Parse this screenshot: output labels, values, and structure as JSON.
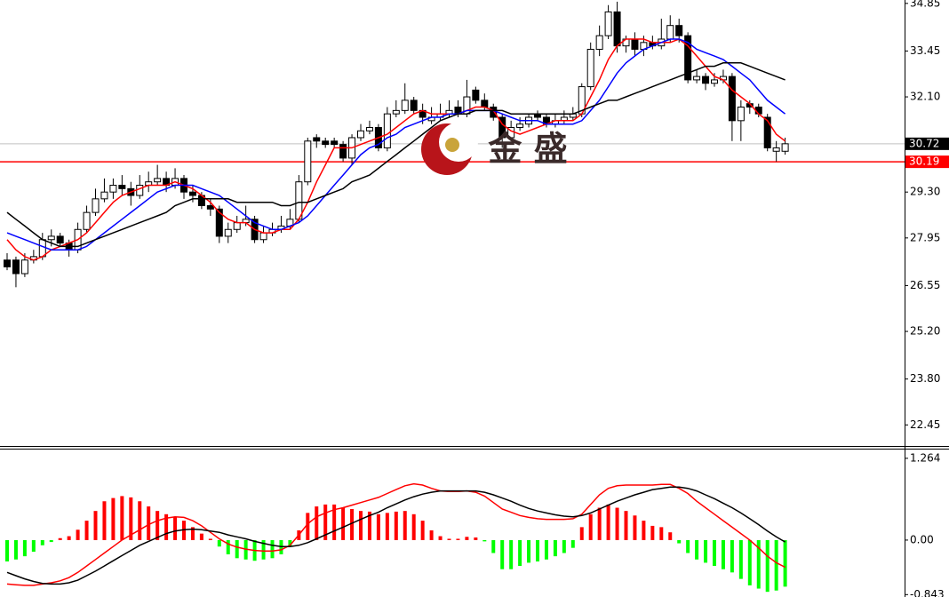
{
  "chart_data": [
    {
      "type": "candlestick",
      "open": [
        27.3,
        27.3,
        26.9,
        27.3,
        27.4,
        27.9,
        28.0,
        27.8,
        27.6,
        28.2,
        28.7,
        29.1,
        29.3,
        29.5,
        29.4,
        29.2,
        29.5,
        29.6,
        29.7,
        29.5,
        29.7,
        29.3,
        29.2,
        28.9,
        28.8,
        28.0,
        28.2,
        28.4,
        28.5,
        27.9,
        28.1,
        28.2,
        28.3,
        28.5,
        29.6,
        30.9,
        30.8,
        30.8,
        30.7,
        30.3,
        30.9,
        31.1,
        31.2,
        30.6,
        31.6,
        31.7,
        32.0,
        31.7,
        31.4,
        31.5,
        31.6,
        31.8,
        31.6,
        32.3,
        32.0,
        31.8,
        31.5,
        30.9,
        31.2,
        31.3,
        31.6,
        31.5,
        31.3,
        31.4,
        31.5,
        31.6,
        32.4,
        33.5,
        33.9,
        34.6,
        33.6,
        33.8,
        33.5,
        33.7,
        33.6,
        33.8,
        34.2,
        33.9,
        32.6,
        32.7,
        32.5,
        32.6,
        32.7,
        31.4,
        31.9,
        31.8,
        31.5,
        30.5,
        30.5
      ],
      "high": [
        27.5,
        27.4,
        27.5,
        27.6,
        28.1,
        28.2,
        28.1,
        27.9,
        28.4,
        28.9,
        29.4,
        29.7,
        29.7,
        29.8,
        29.6,
        29.8,
        29.9,
        30.1,
        29.9,
        30.0,
        29.8,
        29.5,
        29.3,
        29.1,
        28.9,
        28.4,
        28.6,
        28.9,
        28.6,
        28.3,
        28.4,
        28.6,
        28.8,
        29.8,
        30.9,
        31.0,
        30.9,
        30.9,
        30.8,
        31.0,
        31.3,
        31.4,
        31.3,
        31.8,
        32.0,
        32.5,
        32.1,
        31.9,
        31.8,
        31.9,
        32.0,
        32.0,
        32.6,
        32.4,
        32.2,
        31.9,
        31.6,
        31.4,
        31.5,
        31.6,
        31.7,
        31.6,
        31.6,
        31.7,
        31.8,
        32.5,
        33.7,
        34.2,
        34.8,
        34.9,
        33.9,
        34.0,
        33.9,
        33.9,
        34.4,
        34.5,
        34.4,
        34.0,
        32.9,
        32.8,
        32.8,
        32.9,
        32.8,
        32.0,
        32.0,
        31.9,
        31.6,
        30.8,
        30.9
      ],
      "low": [
        27.0,
        26.5,
        26.8,
        27.2,
        27.3,
        27.7,
        27.7,
        27.4,
        27.5,
        28.1,
        28.6,
        29.0,
        29.1,
        29.2,
        28.9,
        29.1,
        29.3,
        29.5,
        29.3,
        29.4,
        29.1,
        29.0,
        28.8,
        28.6,
        27.8,
        27.8,
        28.1,
        28.3,
        27.8,
        27.8,
        28.0,
        28.1,
        28.2,
        28.4,
        29.5,
        30.6,
        30.6,
        30.6,
        30.2,
        30.1,
        30.8,
        31.0,
        30.5,
        30.5,
        31.5,
        31.6,
        31.6,
        31.3,
        31.3,
        31.4,
        31.5,
        31.5,
        31.5,
        31.9,
        31.7,
        31.4,
        30.6,
        30.8,
        31.1,
        31.2,
        31.4,
        31.2,
        31.2,
        31.3,
        31.4,
        31.5,
        32.3,
        33.3,
        33.8,
        33.4,
        33.4,
        33.3,
        33.3,
        33.5,
        33.5,
        33.7,
        33.7,
        32.5,
        32.5,
        32.3,
        32.4,
        32.5,
        30.8,
        30.8,
        31.6,
        31.5,
        30.5,
        30.2,
        30.4
      ],
      "close": [
        27.1,
        26.9,
        27.3,
        27.4,
        27.9,
        28.0,
        27.8,
        27.6,
        28.2,
        28.7,
        29.1,
        29.3,
        29.5,
        29.4,
        29.2,
        29.5,
        29.6,
        29.7,
        29.5,
        29.7,
        29.3,
        29.2,
        28.9,
        28.8,
        28.0,
        28.2,
        28.4,
        28.5,
        27.9,
        28.1,
        28.2,
        28.3,
        28.5,
        29.6,
        30.8,
        30.8,
        30.7,
        30.7,
        30.3,
        30.9,
        31.1,
        31.2,
        30.6,
        31.6,
        31.7,
        32.0,
        31.7,
        31.5,
        31.5,
        31.6,
        31.7,
        31.6,
        32.1,
        32.0,
        31.8,
        31.5,
        30.9,
        31.2,
        31.3,
        31.5,
        31.5,
        31.3,
        31.4,
        31.5,
        31.6,
        32.4,
        33.5,
        33.9,
        34.6,
        33.6,
        33.8,
        33.5,
        33.7,
        33.6,
        33.8,
        34.2,
        33.9,
        32.6,
        32.7,
        32.5,
        32.6,
        32.7,
        31.4,
        31.8,
        31.8,
        31.6,
        30.6,
        30.6,
        30.72
      ],
      "up_color": "#ffffff",
      "down_color": "#000000",
      "edge_color": "#000000",
      "series": [
        {
          "color": "#ff0000",
          "values": [
            27.9,
            27.6,
            27.4,
            27.3,
            27.4,
            27.6,
            27.7,
            27.8,
            27.9,
            28.1,
            28.4,
            28.7,
            29.0,
            29.2,
            29.3,
            29.4,
            29.5,
            29.5,
            29.5,
            29.6,
            29.5,
            29.4,
            29.2,
            29.0,
            28.7,
            28.5,
            28.4,
            28.4,
            28.2,
            28.1,
            28.1,
            28.2,
            28.2,
            28.5,
            29.0,
            29.6,
            30.1,
            30.6,
            30.6,
            30.6,
            30.7,
            30.8,
            30.9,
            31.0,
            31.2,
            31.4,
            31.6,
            31.7,
            31.6,
            31.6,
            31.6,
            31.6,
            31.7,
            31.8,
            31.8,
            31.7,
            31.3,
            31.1,
            31.0,
            31.1,
            31.2,
            31.3,
            31.4,
            31.4,
            31.4,
            31.6,
            32.1,
            32.6,
            33.2,
            33.6,
            33.8,
            33.8,
            33.8,
            33.7,
            33.7,
            33.7,
            33.8,
            33.6,
            33.3,
            33.0,
            32.7,
            32.6,
            32.3,
            32.1,
            31.9,
            31.6,
            31.4,
            31.0,
            30.8
          ]
        },
        {
          "color": "#0000ff",
          "values": [
            28.1,
            28.0,
            27.9,
            27.8,
            27.7,
            27.6,
            27.6,
            27.6,
            27.6,
            27.7,
            27.9,
            28.1,
            28.3,
            28.5,
            28.7,
            28.9,
            29.1,
            29.3,
            29.4,
            29.5,
            29.5,
            29.5,
            29.4,
            29.3,
            29.2,
            29.0,
            28.8,
            28.6,
            28.4,
            28.3,
            28.2,
            28.2,
            28.3,
            28.4,
            28.6,
            28.9,
            29.2,
            29.5,
            29.8,
            30.1,
            30.4,
            30.6,
            30.7,
            30.9,
            31.0,
            31.2,
            31.3,
            31.4,
            31.5,
            31.5,
            31.6,
            31.6,
            31.7,
            31.7,
            31.7,
            31.7,
            31.6,
            31.5,
            31.4,
            31.4,
            31.4,
            31.3,
            31.3,
            31.3,
            31.3,
            31.4,
            31.7,
            32.0,
            32.4,
            32.8,
            33.1,
            33.3,
            33.5,
            33.6,
            33.7,
            33.8,
            33.8,
            33.7,
            33.5,
            33.4,
            33.3,
            33.2,
            33.0,
            32.8,
            32.6,
            32.3,
            32.0,
            31.8,
            31.6
          ]
        },
        {
          "color": "#000000",
          "values": [
            28.7,
            28.5,
            28.3,
            28.1,
            27.9,
            27.8,
            27.7,
            27.7,
            27.7,
            27.8,
            27.9,
            28.0,
            28.1,
            28.2,
            28.3,
            28.4,
            28.5,
            28.6,
            28.7,
            28.9,
            29.0,
            29.1,
            29.1,
            29.1,
            29.1,
            29.1,
            29.0,
            29.0,
            29.0,
            29.0,
            29.0,
            28.9,
            28.9,
            29.0,
            29.0,
            29.1,
            29.2,
            29.3,
            29.4,
            29.6,
            29.7,
            29.8,
            30.0,
            30.2,
            30.4,
            30.6,
            30.8,
            31.0,
            31.2,
            31.4,
            31.5,
            31.6,
            31.6,
            31.7,
            31.7,
            31.7,
            31.7,
            31.6,
            31.6,
            31.6,
            31.6,
            31.6,
            31.6,
            31.6,
            31.6,
            31.7,
            31.8,
            31.9,
            32.0,
            32.0,
            32.1,
            32.2,
            32.3,
            32.4,
            32.5,
            32.6,
            32.7,
            32.8,
            32.9,
            33.0,
            33.0,
            33.1,
            33.1,
            33.1,
            33.0,
            32.9,
            32.8,
            32.7,
            32.6
          ]
        }
      ],
      "ylim": [
        21.83,
        34.95
      ],
      "yticks": [
        22.45,
        {
          "value": 23.8,
          "label": "23.80"
        },
        {
          "value": 25.2,
          "label": "25.20"
        },
        26.55,
        27.95,
        {
          "value": 29.3,
          "label": "29.30"
        },
        {
          "value": 32.1,
          "label": "32.10"
        },
        33.45,
        34.85
      ],
      "price_lines": [
        {
          "value": 30.72,
          "color": "#c0c0c0",
          "label_color": "#000000"
        },
        {
          "value": 30.19,
          "color": "#ff0000",
          "label_color": "#ff0000"
        }
      ],
      "watermark": "金 盛"
    },
    {
      "type": "macd",
      "values": [
        -0.33,
        -0.3,
        -0.25,
        -0.18,
        -0.08,
        -0.03,
        0.03,
        0.06,
        0.16,
        0.3,
        0.45,
        0.6,
        0.65,
        0.68,
        0.66,
        0.6,
        0.52,
        0.45,
        0.4,
        0.35,
        0.3,
        0.2,
        0.1,
        0.02,
        -0.1,
        -0.22,
        -0.28,
        -0.3,
        -0.32,
        -0.3,
        -0.28,
        -0.22,
        -0.1,
        0.15,
        0.42,
        0.52,
        0.55,
        0.55,
        0.5,
        0.48,
        0.45,
        0.44,
        0.4,
        0.42,
        0.44,
        0.45,
        0.4,
        0.3,
        0.15,
        0.06,
        0.02,
        0.02,
        0.05,
        0.04,
        -0.02,
        -0.2,
        -0.45,
        -0.45,
        -0.4,
        -0.35,
        -0.33,
        -0.3,
        -0.25,
        -0.2,
        -0.12,
        0.2,
        0.4,
        0.5,
        0.55,
        0.5,
        0.45,
        0.38,
        0.3,
        0.22,
        0.2,
        0.12,
        -0.05,
        -0.2,
        -0.3,
        -0.35,
        -0.4,
        -0.45,
        -0.5,
        -0.6,
        -0.7,
        -0.75,
        -0.8,
        -0.78,
        -0.72
      ],
      "positive_color": "#ff0000",
      "negative_color": "#00ff00",
      "series": [
        {
          "color": "#ff0000",
          "values": [
            -0.68,
            -0.69,
            -0.7,
            -0.7,
            -0.68,
            -0.66,
            -0.63,
            -0.58,
            -0.5,
            -0.4,
            -0.3,
            -0.2,
            -0.1,
            0.0,
            0.08,
            0.16,
            0.24,
            0.3,
            0.34,
            0.36,
            0.35,
            0.3,
            0.22,
            0.12,
            0.02,
            -0.06,
            -0.11,
            -0.14,
            -0.16,
            -0.17,
            -0.17,
            -0.15,
            -0.08,
            0.08,
            0.25,
            0.36,
            0.42,
            0.47,
            0.5,
            0.54,
            0.58,
            0.62,
            0.66,
            0.72,
            0.78,
            0.84,
            0.87,
            0.85,
            0.8,
            0.76,
            0.75,
            0.75,
            0.76,
            0.74,
            0.68,
            0.58,
            0.48,
            0.43,
            0.38,
            0.35,
            0.33,
            0.32,
            0.32,
            0.32,
            0.33,
            0.4,
            0.55,
            0.7,
            0.8,
            0.84,
            0.85,
            0.85,
            0.85,
            0.85,
            0.86,
            0.86,
            0.8,
            0.72,
            0.6,
            0.5,
            0.4,
            0.3,
            0.2,
            0.1,
            0.0,
            -0.12,
            -0.25,
            -0.35,
            -0.42
          ]
        },
        {
          "color": "#000000",
          "values": [
            -0.5,
            -0.55,
            -0.6,
            -0.64,
            -0.67,
            -0.68,
            -0.68,
            -0.66,
            -0.62,
            -0.55,
            -0.48,
            -0.4,
            -0.32,
            -0.24,
            -0.16,
            -0.08,
            -0.02,
            0.04,
            0.1,
            0.14,
            0.16,
            0.17,
            0.16,
            0.14,
            0.12,
            0.08,
            0.05,
            0.02,
            -0.02,
            -0.05,
            -0.08,
            -0.1,
            -0.1,
            -0.08,
            -0.04,
            0.02,
            0.08,
            0.14,
            0.2,
            0.26,
            0.32,
            0.38,
            0.43,
            0.5,
            0.56,
            0.62,
            0.67,
            0.71,
            0.74,
            0.76,
            0.76,
            0.76,
            0.76,
            0.76,
            0.74,
            0.7,
            0.65,
            0.6,
            0.54,
            0.49,
            0.45,
            0.42,
            0.39,
            0.37,
            0.36,
            0.38,
            0.42,
            0.48,
            0.54,
            0.6,
            0.65,
            0.7,
            0.74,
            0.78,
            0.8,
            0.82,
            0.82,
            0.8,
            0.76,
            0.7,
            0.64,
            0.57,
            0.5,
            0.42,
            0.33,
            0.24,
            0.14,
            0.05,
            -0.03
          ]
        }
      ],
      "ylim": [
        -0.88,
        1.4
      ],
      "yticks": [
        -0.843,
        {
          "value": 0,
          "label": "0.00"
        },
        1.264
      ]
    }
  ]
}
